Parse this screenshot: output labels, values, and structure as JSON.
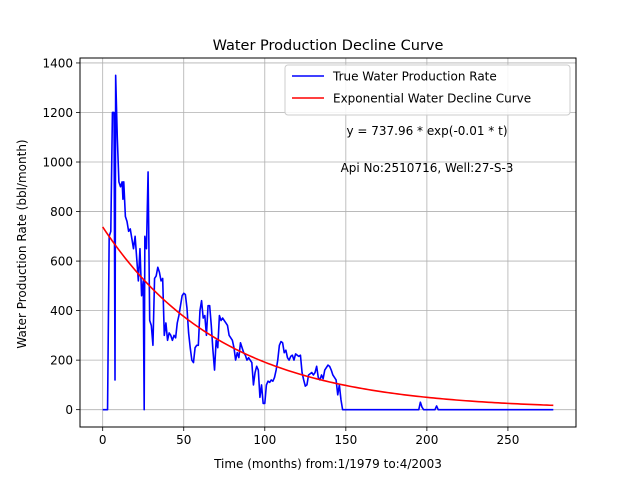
{
  "chart_data": {
    "type": "line",
    "title": "Water Production Decline Curve",
    "xlabel": "Time (months) from:1/1979 to:4/2003",
    "ylabel": "Water Production Rate (bbl/month)",
    "xlim": [
      -14,
      292
    ],
    "ylim": [
      -70,
      1420
    ],
    "xticks": [
      0,
      50,
      100,
      150,
      200,
      250
    ],
    "yticks": [
      0,
      200,
      400,
      600,
      800,
      1000,
      1200,
      1400
    ],
    "grid": true,
    "legend_position": "top-right",
    "annotations": [
      "y = 737.96 * exp(-0.01 * t)",
      "Api No:2510716, Well:27-S-3"
    ],
    "series": [
      {
        "name": "True Water Production Rate",
        "color": "#0000ff",
        "points": [
          [
            0,
            0
          ],
          [
            1,
            0
          ],
          [
            2,
            0
          ],
          [
            3,
            0
          ],
          [
            4,
            700
          ],
          [
            5,
            720
          ],
          [
            6,
            1200
          ],
          [
            7,
            1200
          ],
          [
            7.6,
            120
          ],
          [
            8,
            1350
          ],
          [
            9,
            1100
          ],
          [
            10,
            920
          ],
          [
            11,
            900
          ],
          [
            12,
            920
          ],
          [
            12.5,
            850
          ],
          [
            13,
            920
          ],
          [
            14,
            780
          ],
          [
            15,
            760
          ],
          [
            16,
            720
          ],
          [
            17,
            730
          ],
          [
            18,
            690
          ],
          [
            19,
            650
          ],
          [
            20,
            700
          ],
          [
            21,
            610
          ],
          [
            22,
            520
          ],
          [
            23,
            650
          ],
          [
            24,
            460
          ],
          [
            25,
            520
          ],
          [
            25.6,
            0
          ],
          [
            26,
            700
          ],
          [
            27,
            650
          ],
          [
            28,
            960
          ],
          [
            29,
            360
          ],
          [
            30,
            340
          ],
          [
            31,
            260
          ],
          [
            32,
            530
          ],
          [
            33,
            540
          ],
          [
            34,
            575
          ],
          [
            35,
            555
          ],
          [
            36,
            520
          ],
          [
            37,
            530
          ],
          [
            38,
            300
          ],
          [
            39,
            350
          ],
          [
            40,
            280
          ],
          [
            41,
            310
          ],
          [
            42,
            300
          ],
          [
            43,
            280
          ],
          [
            44,
            300
          ],
          [
            45,
            290
          ],
          [
            46,
            350
          ],
          [
            47,
            380
          ],
          [
            48,
            420
          ],
          [
            49,
            460
          ],
          [
            50,
            470
          ],
          [
            51,
            465
          ],
          [
            52,
            410
          ],
          [
            53,
            310
          ],
          [
            54,
            250
          ],
          [
            55,
            200
          ],
          [
            56,
            190
          ],
          [
            57,
            250
          ],
          [
            58,
            260
          ],
          [
            59,
            260
          ],
          [
            60,
            400
          ],
          [
            61,
            440
          ],
          [
            62,
            370
          ],
          [
            63,
            380
          ],
          [
            64,
            300
          ],
          [
            65,
            420
          ],
          [
            66,
            420
          ],
          [
            67,
            340
          ],
          [
            68,
            240
          ],
          [
            69,
            160
          ],
          [
            70,
            280
          ],
          [
            71,
            250
          ],
          [
            72,
            380
          ],
          [
            73,
            360
          ],
          [
            74,
            370
          ],
          [
            75,
            360
          ],
          [
            76,
            350
          ],
          [
            77,
            340
          ],
          [
            78,
            300
          ],
          [
            79,
            290
          ],
          [
            80,
            280
          ],
          [
            81,
            250
          ],
          [
            82,
            200
          ],
          [
            83,
            230
          ],
          [
            84,
            210
          ],
          [
            85,
            270
          ],
          [
            86,
            250
          ],
          [
            87,
            230
          ],
          [
            88,
            220
          ],
          [
            89,
            200
          ],
          [
            90,
            210
          ],
          [
            91,
            200
          ],
          [
            92,
            190
          ],
          [
            93,
            100
          ],
          [
            94,
            150
          ],
          [
            95,
            175
          ],
          [
            96,
            160
          ],
          [
            97,
            50
          ],
          [
            98,
            100
          ],
          [
            99,
            25
          ],
          [
            100,
            25
          ],
          [
            101,
            100
          ],
          [
            102,
            115
          ],
          [
            103,
            110
          ],
          [
            104,
            120
          ],
          [
            105,
            115
          ],
          [
            106,
            130
          ],
          [
            107,
            160
          ],
          [
            108,
            200
          ],
          [
            109,
            260
          ],
          [
            110,
            275
          ],
          [
            111,
            270
          ],
          [
            112,
            230
          ],
          [
            113,
            240
          ],
          [
            114,
            210
          ],
          [
            115,
            200
          ],
          [
            116,
            215
          ],
          [
            117,
            220
          ],
          [
            118,
            200
          ],
          [
            119,
            225
          ],
          [
            120,
            220
          ],
          [
            121,
            215
          ],
          [
            122,
            220
          ],
          [
            123,
            150
          ],
          [
            124,
            120
          ],
          [
            125,
            95
          ],
          [
            126,
            100
          ],
          [
            127,
            140
          ],
          [
            128,
            145
          ],
          [
            129,
            150
          ],
          [
            130,
            140
          ],
          [
            131,
            150
          ],
          [
            132,
            175
          ],
          [
            133,
            130
          ],
          [
            134,
            120
          ],
          [
            135,
            140
          ],
          [
            136,
            125
          ],
          [
            137,
            160
          ],
          [
            138,
            170
          ],
          [
            139,
            180
          ],
          [
            140,
            175
          ],
          [
            141,
            160
          ],
          [
            142,
            140
          ],
          [
            143,
            130
          ],
          [
            144,
            120
          ],
          [
            145,
            60
          ],
          [
            146,
            100
          ],
          [
            147,
            40
          ],
          [
            148,
            0
          ],
          [
            150,
            0
          ],
          [
            160,
            0
          ],
          [
            170,
            0
          ],
          [
            180,
            0
          ],
          [
            190,
            0
          ],
          [
            195,
            0
          ],
          [
            196,
            30
          ],
          [
            197,
            10
          ],
          [
            198,
            0
          ],
          [
            205,
            0
          ],
          [
            206,
            15
          ],
          [
            207,
            0
          ],
          [
            220,
            0
          ],
          [
            240,
            0
          ],
          [
            260,
            0
          ],
          [
            278,
            0
          ]
        ]
      },
      {
        "name": "Exponential Water Decline Curve",
        "color": "#ff0000",
        "function": {
          "a": 737.96,
          "b": 0.013478,
          "t_min": 0,
          "t_max": 278
        }
      }
    ]
  }
}
